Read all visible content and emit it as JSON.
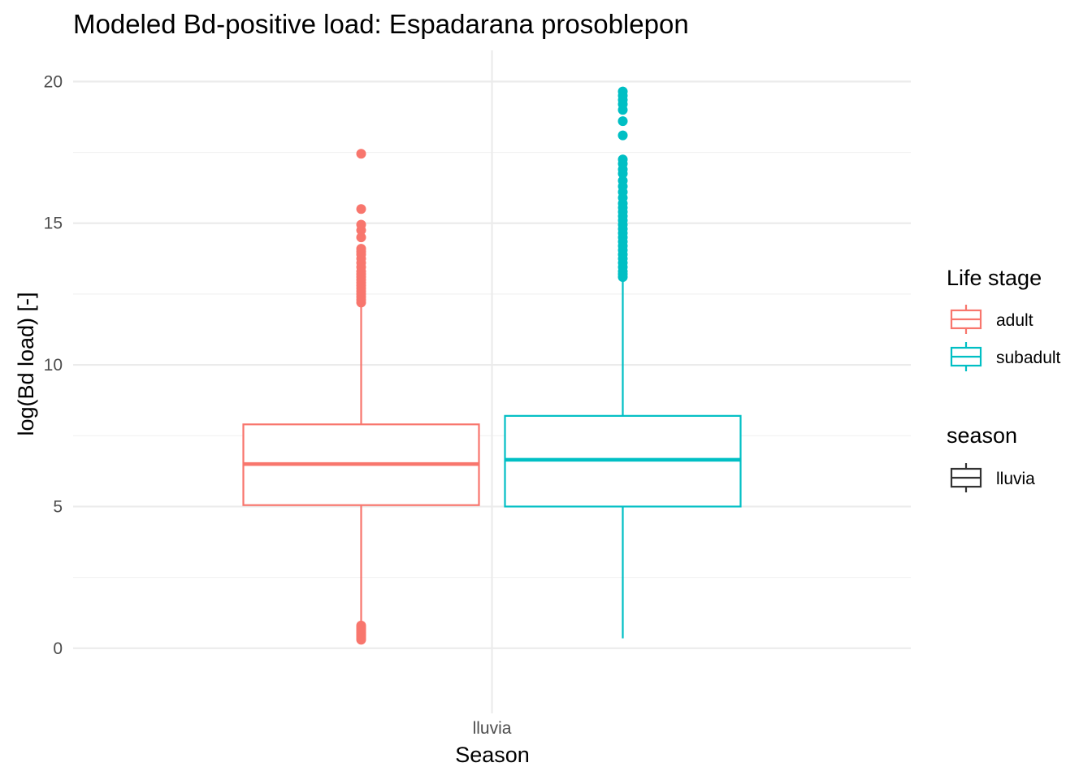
{
  "chart_data": {
    "type": "boxplot",
    "title": "Modeled Bd-positive load: Espadarana prosoblepon",
    "xlabel": "Season",
    "ylabel": "log(Bd load) [-]",
    "categories": [
      "lluvia"
    ],
    "ylim": [
      -2.3,
      21.1
    ],
    "yticks": [
      0,
      5,
      10,
      15,
      20
    ],
    "yticklabels": [
      "0",
      "5",
      "10",
      "15",
      "20"
    ],
    "grid": true,
    "series": [
      {
        "name": "adult",
        "color": "#F8766D",
        "category": "lluvia",
        "min": 0.3,
        "q1": 5.05,
        "median": 6.5,
        "q3": 7.9,
        "max": 12.1,
        "outliers": [
          0.3,
          0.35,
          0.4,
          0.45,
          0.5,
          0.55,
          0.6,
          0.65,
          0.7,
          0.75,
          0.8,
          12.2,
          12.3,
          12.4,
          12.5,
          12.6,
          12.7,
          12.8,
          12.9,
          13.0,
          13.1,
          13.2,
          13.3,
          13.45,
          13.6,
          13.75,
          13.9,
          14.0,
          14.1,
          14.5,
          14.75,
          14.95,
          15.5,
          17.45
        ]
      },
      {
        "name": "subadult",
        "color": "#00BFC4",
        "category": "lluvia",
        "min": 0.35,
        "q1": 5.0,
        "median": 6.65,
        "q3": 8.2,
        "max": 13.0,
        "outliers": [
          13.1,
          13.2,
          13.3,
          13.45,
          13.6,
          13.75,
          13.9,
          14.05,
          14.2,
          14.35,
          14.5,
          14.65,
          14.8,
          14.95,
          15.1,
          15.25,
          15.4,
          15.55,
          15.7,
          15.9,
          16.1,
          16.3,
          16.5,
          16.75,
          16.9,
          17.1,
          17.25,
          18.1,
          18.6,
          19.0,
          19.2,
          19.35,
          19.5,
          19.65
        ]
      }
    ],
    "legends": [
      {
        "title": "Life stage",
        "entries": [
          {
            "label": "adult",
            "color": "#F8766D"
          },
          {
            "label": "subadult",
            "color": "#00BFC4"
          }
        ]
      },
      {
        "title": "season",
        "entries": [
          {
            "label": "lluvia",
            "color": "#333333"
          }
        ]
      }
    ],
    "legend_position": "right"
  }
}
